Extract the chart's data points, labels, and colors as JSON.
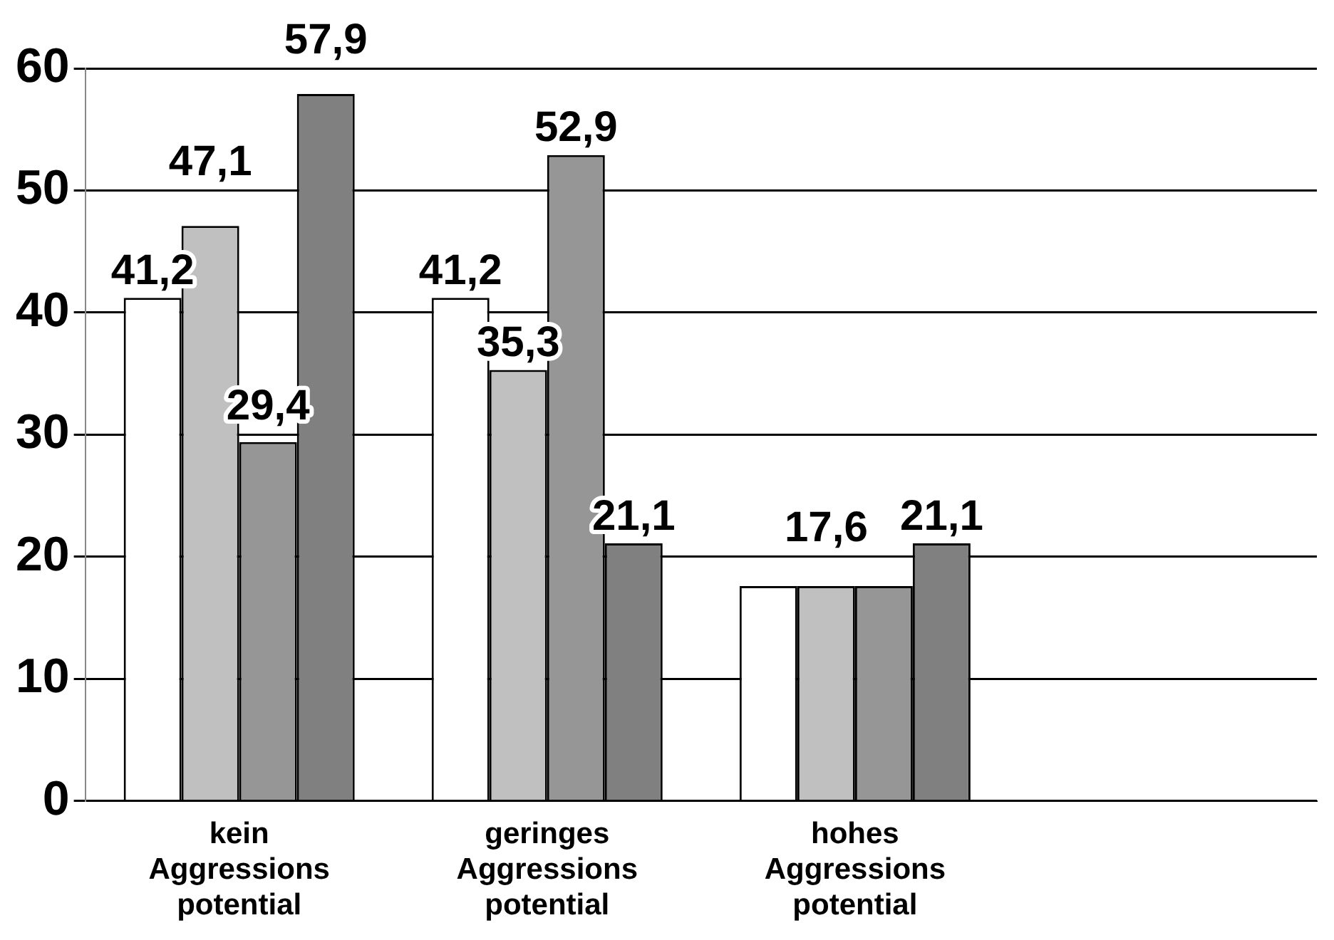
{
  "chart_data": {
    "type": "bar",
    "categories": [
      "kein Aggressions potential",
      "geringes Aggressions potential",
      "hohes Aggressions potential",
      null
    ],
    "series": [
      {
        "color": "#ffffff",
        "values": [
          41.2,
          41.2,
          17.6,
          null
        ],
        "value_labels": [
          "41,2",
          "41,2",
          null,
          null
        ]
      },
      {
        "color": "#c0c0c0",
        "values": [
          47.1,
          35.3,
          17.6,
          null
        ],
        "value_labels": [
          "47,1",
          "35,3",
          "17,6",
          null
        ]
      },
      {
        "color": "#969696",
        "values": [
          29.4,
          52.9,
          17.6,
          null
        ],
        "value_labels": [
          "29,4",
          "52,9",
          null,
          null
        ]
      },
      {
        "color": "#808080",
        "values": [
          57.9,
          21.1,
          21.1,
          null
        ],
        "value_labels": [
          "57,9",
          "21,1",
          "21,1",
          null
        ]
      }
    ],
    "ylim": [
      0,
      60
    ],
    "yticks": [
      0,
      10,
      20,
      30,
      40,
      50,
      60
    ],
    "grid": "y",
    "legend": false
  }
}
